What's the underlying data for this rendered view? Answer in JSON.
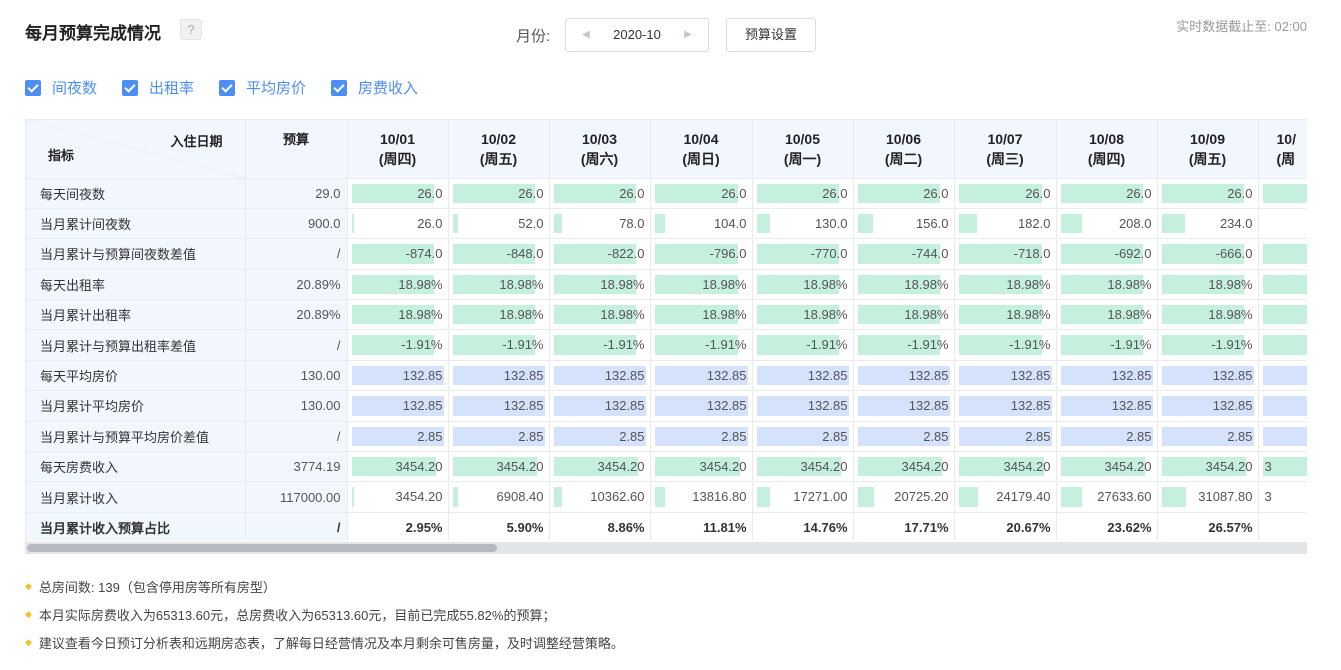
{
  "header": {
    "title": "每月预算完成情况",
    "help_label": "?",
    "month_label": "月份:",
    "month_value": "2020-10",
    "budget_setting_label": "预算设置",
    "realtime_text": "实时数据截止至: 02:00"
  },
  "filters": [
    {
      "label": "间夜数",
      "checked": true
    },
    {
      "label": "出租率",
      "checked": true
    },
    {
      "label": "平均房价",
      "checked": true
    },
    {
      "label": "房费收入",
      "checked": true
    }
  ],
  "table": {
    "corner_top": "入住日期",
    "corner_bottom": "指标",
    "budget_header": "预算",
    "columns": [
      {
        "date": "10/01",
        "weekday": "(周四)"
      },
      {
        "date": "10/02",
        "weekday": "(周五)"
      },
      {
        "date": "10/03",
        "weekday": "(周六)"
      },
      {
        "date": "10/04",
        "weekday": "(周日)"
      },
      {
        "date": "10/05",
        "weekday": "(周一)"
      },
      {
        "date": "10/06",
        "weekday": "(周二)"
      },
      {
        "date": "10/07",
        "weekday": "(周三)"
      },
      {
        "date": "10/08",
        "weekday": "(周四)"
      },
      {
        "date": "10/09",
        "weekday": "(周五)"
      },
      {
        "date": "10/",
        "weekday": "(周"
      }
    ],
    "colors": {
      "green": "#c5f0de",
      "blue": "#d4e3fb"
    },
    "rows": [
      {
        "name": "每天间夜数",
        "budget": "29.0",
        "color": "green",
        "bold": false,
        "values": [
          "26.0",
          "26.0",
          "26.0",
          "26.0",
          "26.0",
          "26.0",
          "26.0",
          "26.0",
          "26.0",
          ""
        ],
        "fill": [
          0.9,
          0.9,
          0.9,
          0.9,
          0.9,
          0.9,
          0.9,
          0.9,
          0.9,
          0.9
        ]
      },
      {
        "name": "当月累计间夜数",
        "budget": "900.0",
        "color": "green",
        "bold": false,
        "values": [
          "26.0",
          "52.0",
          "78.0",
          "104.0",
          "130.0",
          "156.0",
          "182.0",
          "208.0",
          "234.0",
          ""
        ],
        "fill": [
          0.029,
          0.058,
          0.087,
          0.116,
          0.144,
          0.173,
          0.202,
          0.231,
          0.26,
          0
        ]
      },
      {
        "name": "当月累计与预算间夜数差值",
        "budget": "/",
        "color": "green",
        "bold": false,
        "values": [
          "-874.0",
          "-848.0",
          "-822.0",
          "-796.0",
          "-770.0",
          "-744.0",
          "-718.0",
          "-692.0",
          "-666.0",
          ""
        ],
        "fill": [
          0.9,
          0.9,
          0.9,
          0.9,
          0.9,
          0.9,
          0.9,
          0.9,
          0.9,
          0.9
        ]
      },
      {
        "name": "每天出租率",
        "budget": "20.89%",
        "color": "green",
        "bold": false,
        "values": [
          "18.98%",
          "18.98%",
          "18.98%",
          "18.98%",
          "18.98%",
          "18.98%",
          "18.98%",
          "18.98%",
          "18.98%",
          ""
        ],
        "fill": [
          0.9,
          0.9,
          0.9,
          0.9,
          0.9,
          0.9,
          0.9,
          0.9,
          0.9,
          0.9
        ]
      },
      {
        "name": "当月累计出租率",
        "budget": "20.89%",
        "color": "green",
        "bold": false,
        "values": [
          "18.98%",
          "18.98%",
          "18.98%",
          "18.98%",
          "18.98%",
          "18.98%",
          "18.98%",
          "18.98%",
          "18.98%",
          ""
        ],
        "fill": [
          0.9,
          0.9,
          0.9,
          0.9,
          0.9,
          0.9,
          0.9,
          0.9,
          0.9,
          0.9
        ]
      },
      {
        "name": "当月累计与预算出租率差值",
        "budget": "/",
        "color": "green",
        "bold": false,
        "values": [
          "-1.91%",
          "-1.91%",
          "-1.91%",
          "-1.91%",
          "-1.91%",
          "-1.91%",
          "-1.91%",
          "-1.91%",
          "-1.91%",
          ""
        ],
        "fill": [
          0.9,
          0.9,
          0.9,
          0.9,
          0.9,
          0.9,
          0.9,
          0.9,
          0.9,
          0.9
        ]
      },
      {
        "name": "每天平均房价",
        "budget": "130.00",
        "color": "blue",
        "bold": false,
        "values": [
          "132.85",
          "132.85",
          "132.85",
          "132.85",
          "132.85",
          "132.85",
          "132.85",
          "132.85",
          "132.85",
          ""
        ],
        "fill": [
          1,
          1,
          1,
          1,
          1,
          1,
          1,
          1,
          1,
          1
        ]
      },
      {
        "name": "当月累计平均房价",
        "budget": "130.00",
        "color": "blue",
        "bold": false,
        "values": [
          "132.85",
          "132.85",
          "132.85",
          "132.85",
          "132.85",
          "132.85",
          "132.85",
          "132.85",
          "132.85",
          ""
        ],
        "fill": [
          1,
          1,
          1,
          1,
          1,
          1,
          1,
          1,
          1,
          1
        ]
      },
      {
        "name": "当月累计与预算平均房价差值",
        "budget": "/",
        "color": "blue",
        "bold": false,
        "values": [
          "2.85",
          "2.85",
          "2.85",
          "2.85",
          "2.85",
          "2.85",
          "2.85",
          "2.85",
          "2.85",
          ""
        ],
        "fill": [
          1,
          1,
          1,
          1,
          1,
          1,
          1,
          1,
          1,
          1
        ]
      },
      {
        "name": "每天房费收入",
        "budget": "3774.19",
        "color": "green",
        "bold": false,
        "values": [
          "3454.20",
          "3454.20",
          "3454.20",
          "3454.20",
          "3454.20",
          "3454.20",
          "3454.20",
          "3454.20",
          "3454.20",
          "3"
        ],
        "fill": [
          0.915,
          0.915,
          0.915,
          0.915,
          0.915,
          0.915,
          0.915,
          0.915,
          0.915,
          0.915
        ]
      },
      {
        "name": "当月累计收入",
        "budget": "117000.00",
        "color": "green",
        "bold": false,
        "values": [
          "3454.20",
          "6908.40",
          "10362.60",
          "13816.80",
          "17271.00",
          "20725.20",
          "24179.40",
          "27633.60",
          "31087.80",
          "3"
        ],
        "fill": [
          0.03,
          0.059,
          0.089,
          0.118,
          0.148,
          0.177,
          0.207,
          0.236,
          0.266,
          0
        ]
      },
      {
        "name": "当月累计收入预算占比",
        "budget": "/",
        "color": "none",
        "bold": true,
        "values": [
          "2.95%",
          "5.90%",
          "8.86%",
          "11.81%",
          "14.76%",
          "17.71%",
          "20.67%",
          "23.62%",
          "26.57%",
          ""
        ],
        "fill": [
          0,
          0,
          0,
          0,
          0,
          0,
          0,
          0,
          0,
          0
        ]
      }
    ]
  },
  "notes": [
    "总房间数: 139（包含停用房等所有房型）",
    "本月实际房费收入为65313.60元，总房费收入为65313.60元，目前已完成55.82%的预算；",
    "建议查看今日预订分析表和远期房态表，了解每日经营情况及本月剩余可售房量，及时调整经营策略。"
  ]
}
